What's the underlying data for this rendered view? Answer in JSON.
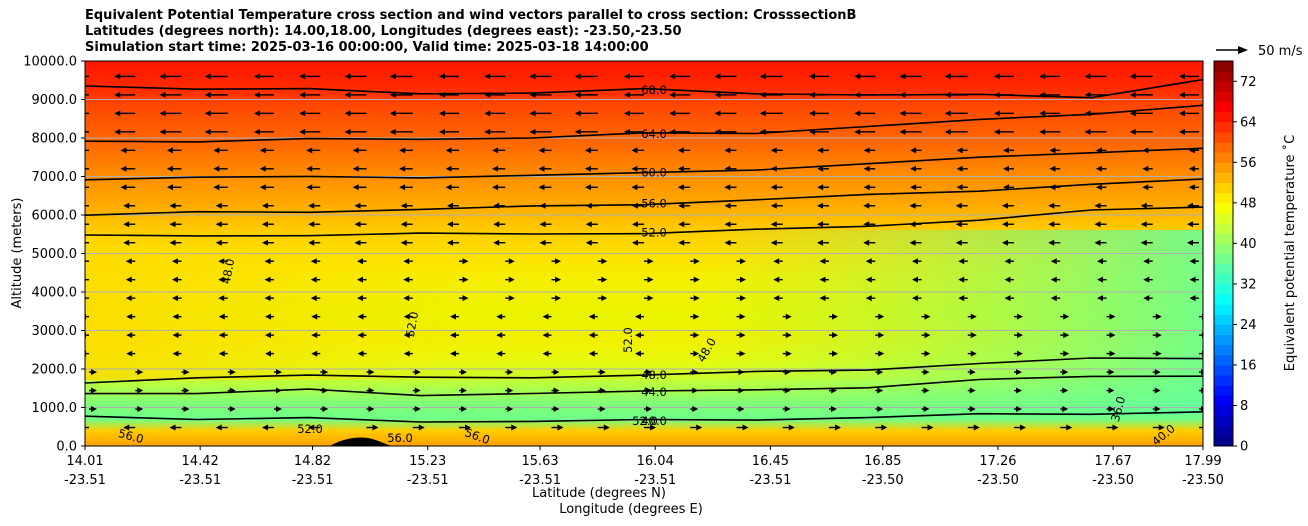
{
  "chart_data": {
    "type": "heatmap",
    "title_lines": [
      "Equivalent Potential Temperature cross section and wind vectors parallel to cross section: CrosssectionB",
      "Latitudes (degrees north): 14.00,18.00, Longitudes (degrees east): -23.50,-23.50",
      "Simulation start time: 2025-03-16 00:00:00, Valid time: 2025-03-18 14:00:00"
    ],
    "ylabel": "Altitude (meters)",
    "xlabel_lat": "Latitude (degrees N)",
    "xlabel_lon": "Longitude (degrees E)",
    "ylim": [
      0,
      10000
    ],
    "y_ticks": [
      "0.0",
      "1000.0",
      "2000.0",
      "3000.0",
      "4000.0",
      "5000.0",
      "6000.0",
      "7000.0",
      "8000.0",
      "9000.0",
      "10000.0"
    ],
    "x_range": [
      14.01,
      17.99
    ],
    "x_ticks": [
      {
        "lat": "14.01",
        "lon": "-23.51"
      },
      {
        "lat": "14.42",
        "lon": "-23.51"
      },
      {
        "lat": "14.82",
        "lon": "-23.51"
      },
      {
        "lat": "15.23",
        "lon": "-23.51"
      },
      {
        "lat": "15.63",
        "lon": "-23.51"
      },
      {
        "lat": "16.04",
        "lon": "-23.51"
      },
      {
        "lat": "16.45",
        "lon": "-23.51"
      },
      {
        "lat": "16.85",
        "lon": "-23.50"
      },
      {
        "lat": "17.26",
        "lon": "-23.50"
      },
      {
        "lat": "17.67",
        "lon": "-23.50"
      },
      {
        "lat": "17.99",
        "lon": "-23.50"
      }
    ],
    "colorbar": {
      "label": "Equivalent potential temperature $^\\circ$C",
      "label_display": "Equivalent potential temperature ˚C",
      "ticks": [
        "0",
        "8",
        "16",
        "24",
        "32",
        "40",
        "48",
        "56",
        "64",
        "72"
      ],
      "range": [
        0,
        76
      ],
      "colormap": "jet"
    },
    "quiver_key": "50 m/s",
    "contours": [
      {
        "level": 68.0,
        "label": "68.0",
        "heights": [
          9350,
          9300,
          9250,
          9150,
          9200,
          9250,
          9150,
          9150,
          9100,
          9050,
          9550
        ]
      },
      {
        "level": 64.0,
        "label": "64.0",
        "heights": [
          7950,
          7900,
          7950,
          8000,
          8000,
          8100,
          8150,
          8300,
          8450,
          8650,
          8850
        ]
      },
      {
        "level": 60.0,
        "label": "60.0",
        "heights": [
          6950,
          6950,
          7000,
          7000,
          7000,
          7100,
          7200,
          7300,
          7500,
          7650,
          7700
        ]
      },
      {
        "level": 56.0,
        "label": "56.0",
        "heights": [
          6000,
          6050,
          6100,
          6150,
          6200,
          6300,
          6400,
          6500,
          6650,
          6800,
          6900
        ]
      },
      {
        "level": 52.0,
        "label": "52.0",
        "heights": [
          5450,
          5450,
          5500,
          5500,
          5500,
          5550,
          5600,
          5700,
          5900,
          6100,
          6200
        ]
      },
      {
        "level": 48.0,
        "label": "48.0",
        "heights": [
          1600,
          1800,
          1850,
          1750,
          1800,
          1850,
          1900,
          2000,
          2150,
          2250,
          2300
        ]
      },
      {
        "level": 44.0,
        "label": "44.0",
        "heights": [
          1350,
          1400,
          1450,
          1300,
          1400,
          1400,
          1450,
          1550,
          1700,
          1800,
          1850
        ]
      },
      {
        "level": 40.0,
        "label": "40.0",
        "heights": [
          800,
          700,
          700,
          650,
          650,
          650,
          700,
          750,
          800,
          850,
          900
        ]
      }
    ],
    "extra_contour_labels": [
      "48.0",
      "52.0",
      "52.0",
      "52.0",
      "48.0",
      "56.0",
      "56.0",
      "56.0",
      "36.0",
      "52.0",
      "40.0"
    ],
    "wind_vectors": "westward (easterly) flow aloft, weakening below ~6000 m; weak eastward near 3000-4000 m"
  }
}
